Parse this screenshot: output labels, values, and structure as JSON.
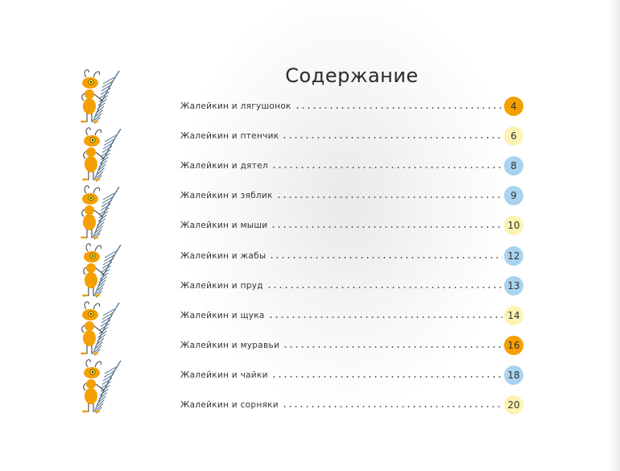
{
  "title": "Содержание",
  "colors": {
    "orange": "#f5a000",
    "yellow": "#fdf3b2",
    "blue": "#a9d3ef"
  },
  "entries": [
    {
      "label": "Жалейкин и лягушонок",
      "page": "4",
      "color": "orange"
    },
    {
      "label": "Жалейкин и птенчик",
      "page": "6",
      "color": "yellow"
    },
    {
      "label": "Жалейкин и дятел",
      "page": "8",
      "color": "blue"
    },
    {
      "label": "Жалейкин и зяблик",
      "page": "9",
      "color": "blue"
    },
    {
      "label": "Жалейкин и мыши",
      "page": "10",
      "color": "yellow"
    },
    {
      "label": "Жалейкин и жабы",
      "page": "12",
      "color": "blue"
    },
    {
      "label": "Жалейкин и пруд",
      "page": "13",
      "color": "blue"
    },
    {
      "label": "Жалейкин и щука",
      "page": "14",
      "color": "yellow"
    },
    {
      "label": "Жалейкин и муравьи",
      "page": "16",
      "color": "orange"
    },
    {
      "label": "Жалейкин и чайки",
      "page": "18",
      "color": "blue"
    },
    {
      "label": "Жалейкин и сорняки",
      "page": "20",
      "color": "yellow"
    }
  ],
  "illustration": {
    "icon": "ant-with-feather-icon",
    "count": 6
  }
}
